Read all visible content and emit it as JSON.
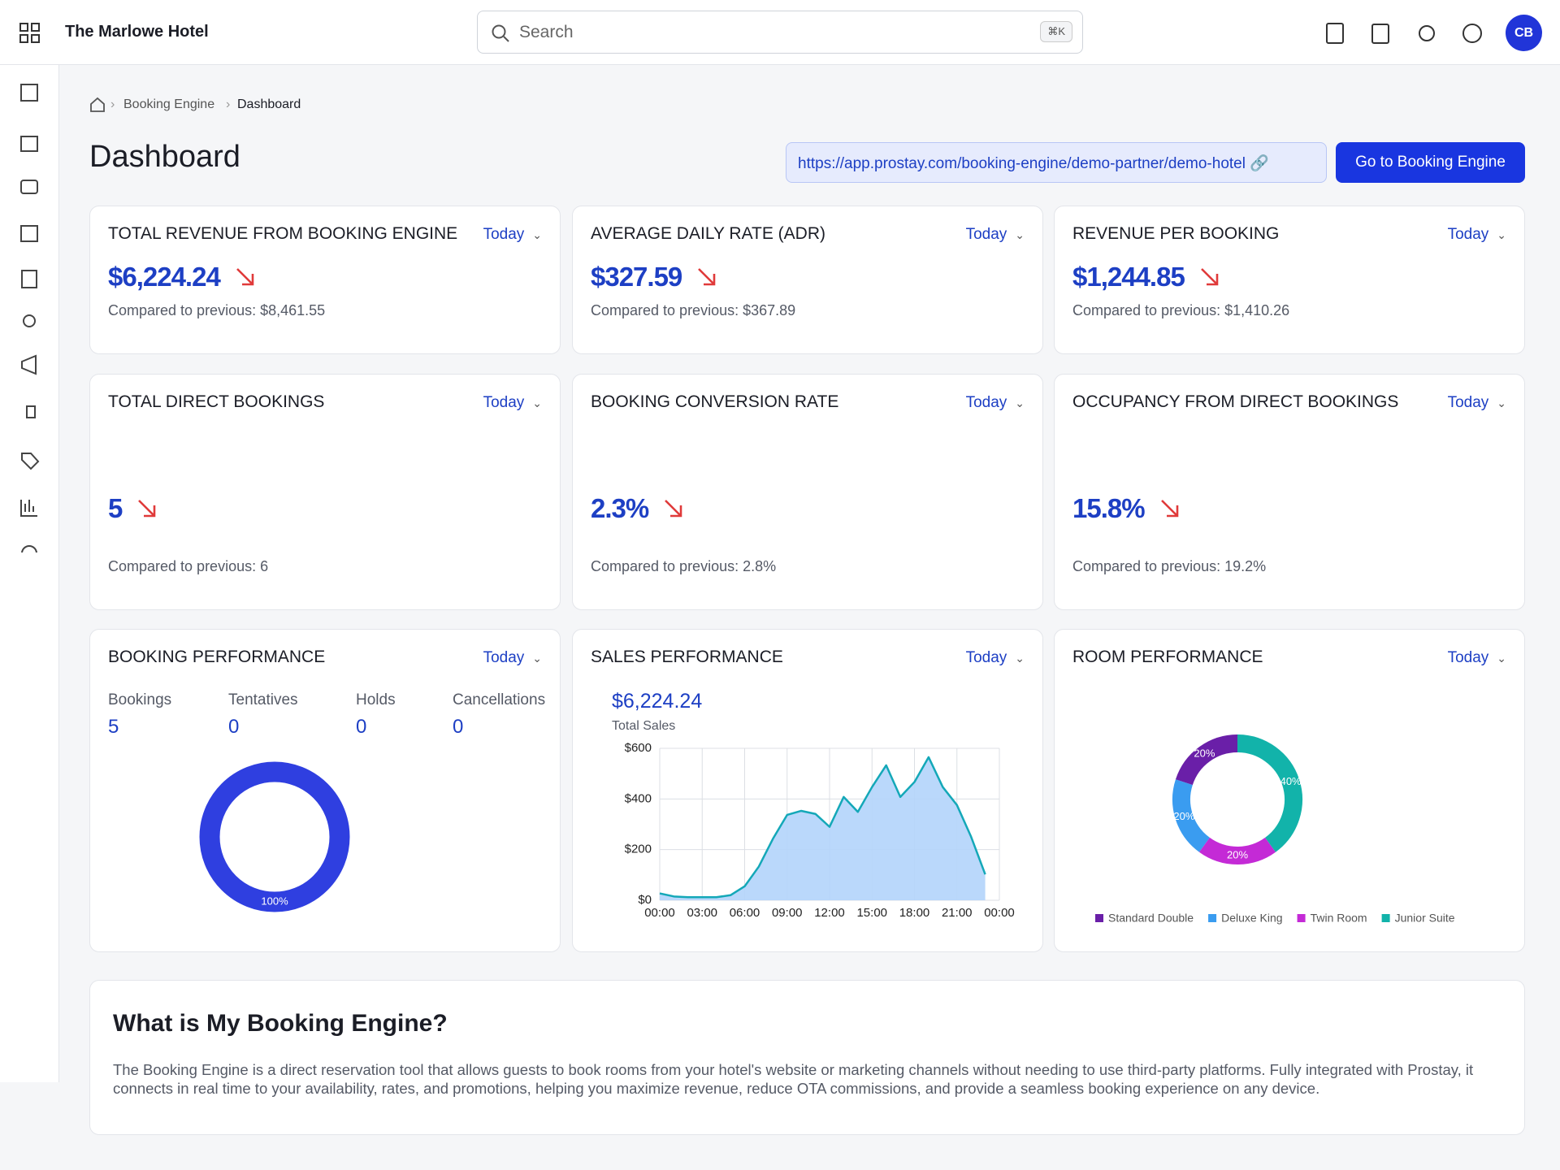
{
  "header": {
    "hotel": "The Marlowe Hotel",
    "search": "Search",
    "shortcut": "⌘K",
    "avatar": "CB"
  },
  "breadcrumb": [
    "Booking Engine",
    "Dashboard"
  ],
  "page": {
    "title": "Dashboard",
    "url": "https://app.prostay.com/booking-engine/demo-partner/demo-hotel",
    "button": "Go to Booking Engine"
  },
  "kpis": [
    {
      "title": "TOTAL REVENUE FROM BOOKING ENGINE",
      "period": "Today",
      "value": "$6,224.24",
      "compare": "Compared to previous: $8,461.55"
    },
    {
      "title": "AVERAGE DAILY RATE (ADR)",
      "period": "Today",
      "value": "$327.59",
      "compare": "Compared to previous: $367.89"
    },
    {
      "title": "REVENUE PER BOOKING",
      "period": "Today",
      "value": "$1,244.85",
      "compare": "Compared to previous: $1,410.26"
    },
    {
      "title": "TOTAL DIRECT BOOKINGS",
      "period": "Today",
      "value": "5",
      "compare": "Compared to previous: 6"
    },
    {
      "title": "BOOKING CONVERSION RATE",
      "period": "Today",
      "value": "2.3%",
      "compare": "Compared to previous: 2.8%"
    },
    {
      "title": "OCCUPANCY FROM DIRECT BOOKINGS",
      "period": "Today",
      "value": "15.8%",
      "compare": "Compared to previous: 19.2%"
    }
  ],
  "booking_performance": {
    "title": "BOOKING PERFORMANCE",
    "period": "Today",
    "stats": [
      {
        "label": "Bookings",
        "value": "5"
      },
      {
        "label": "Tentatives",
        "value": "0"
      },
      {
        "label": "Holds",
        "value": "0"
      },
      {
        "label": "Cancellations",
        "value": "0"
      }
    ],
    "chart": {
      "type": "pie",
      "categories": [
        "Bookings"
      ],
      "values": [
        100
      ],
      "value_labels": [
        "100%"
      ],
      "colors": [
        "#2f3fe0"
      ]
    }
  },
  "sales_performance": {
    "title": "SALES PERFORMANCE",
    "period": "Today",
    "total": "$6,224.24",
    "total_label": "Total Sales",
    "chart": {
      "type": "area",
      "color": "#14a8b8",
      "fill": "#b3d4fb",
      "x": [
        0,
        1,
        2,
        3,
        4,
        5,
        6,
        7,
        8,
        9,
        10,
        11,
        12,
        13,
        14,
        15,
        16,
        17,
        18,
        19,
        20,
        21,
        22,
        23
      ],
      "values": [
        27,
        15,
        12,
        12,
        12,
        20,
        55,
        133,
        243,
        337,
        353,
        341,
        290,
        408,
        349,
        447,
        533,
        408,
        467,
        565,
        447,
        376,
        251,
        102
      ],
      "xlim": [
        0,
        24
      ],
      "ylim": [
        0,
        600
      ],
      "xticks": [
        {
          "value": 0,
          "label": "00:00"
        },
        {
          "value": 3,
          "label": "03:00"
        },
        {
          "value": 6,
          "label": "06:00"
        },
        {
          "value": 9,
          "label": "09:00"
        },
        {
          "value": 12,
          "label": "12:00"
        },
        {
          "value": 15,
          "label": "15:00"
        },
        {
          "value": 18,
          "label": "18:00"
        },
        {
          "value": 21,
          "label": "21:00"
        },
        {
          "value": 24,
          "label": "00:00"
        }
      ],
      "yticks": [
        {
          "value": 0,
          "label": "$0"
        },
        {
          "value": 200,
          "label": "$200"
        },
        {
          "value": 400,
          "label": "$400"
        },
        {
          "value": 600,
          "label": "$600"
        }
      ],
      "grid": true
    }
  },
  "room_performance": {
    "title": "ROOM PERFORMANCE",
    "period": "Today",
    "chart": {
      "type": "donut",
      "categories": [
        "Standard Double",
        "Deluxe King",
        "Twin Room",
        "Junior Suite"
      ],
      "values": [
        20,
        20,
        20,
        40
      ],
      "value_labels": [
        "20%",
        "20%",
        "20%",
        "40%"
      ],
      "colors": [
        "#6a1fa8",
        "#3a9cf0",
        "#c42ad6",
        "#12b3aa"
      ]
    }
  },
  "info": {
    "title": "What is My Booking Engine?",
    "text": "The Booking Engine is a direct reservation tool that allows guests to book rooms from your hotel's website or marketing channels without needing to use third-party platforms. Fully integrated with Prostay, it connects in real time to your availability, rates, and promotions, helping you maximize revenue, reduce OTA commissions, and provide a seamless booking experience on any device."
  }
}
